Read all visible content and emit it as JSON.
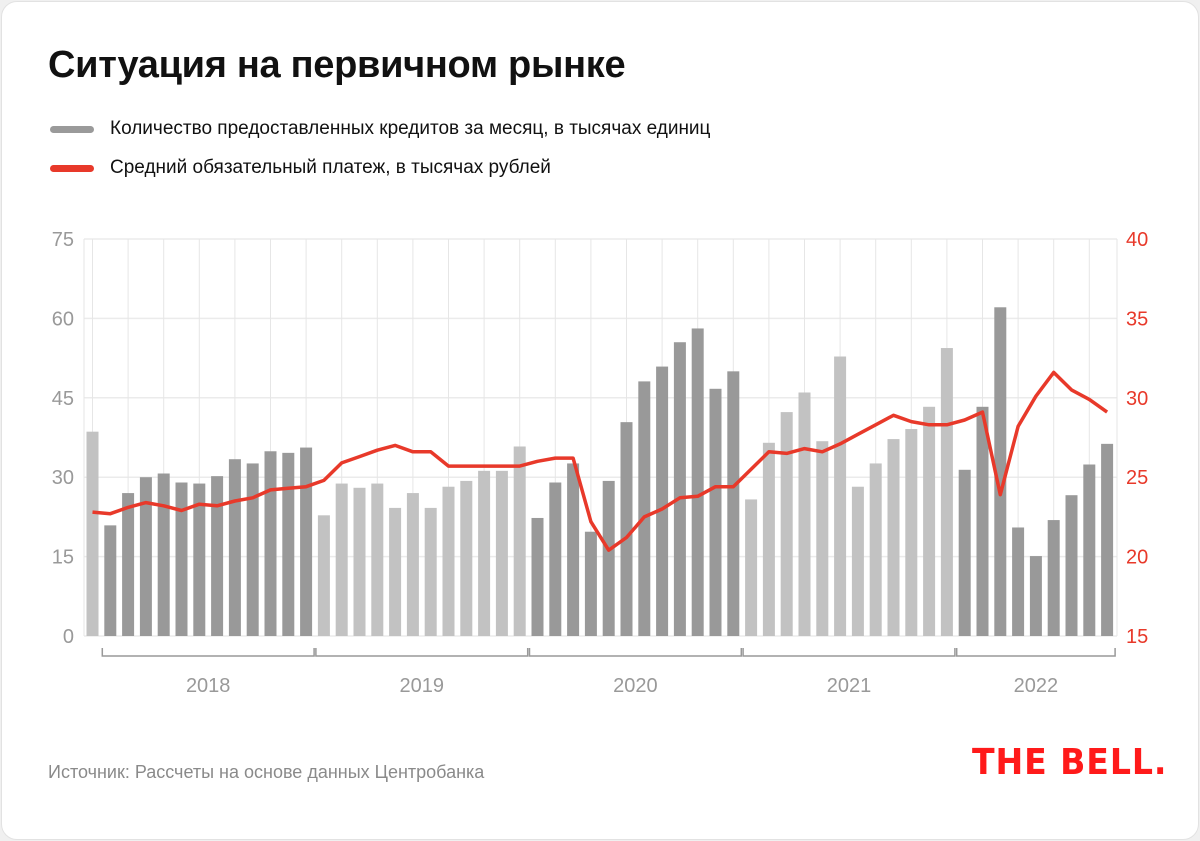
{
  "title": "Ситуация на первичном рынке",
  "legend": [
    {
      "label": "Количество предоставленных кредитов за месяц, в тысячах единиц",
      "color": "#9a9a9a"
    },
    {
      "label": "Средний обязательный платеж, в тысячах рублей",
      "color": "#e8392a"
    }
  ],
  "source": "Источник: Рассчеты на основе данных Центробанка",
  "logo": "THE BELL.",
  "chart_data": {
    "type": "bar+line",
    "title": "Ситуация на первичном рынке",
    "x_period": "2017-12 to 2022-09 monthly",
    "year_labels": [
      {
        "label": "2018",
        "first": 1,
        "last": 12
      },
      {
        "label": "2019",
        "first": 13,
        "last": 24
      },
      {
        "label": "2020",
        "first": 25,
        "last": 36
      },
      {
        "label": "2021",
        "first": 37,
        "last": 48
      },
      {
        "label": "2022",
        "first": 49,
        "last": 57
      }
    ],
    "left_axis": {
      "ylim": [
        0,
        75
      ],
      "ticks": [
        "0",
        "15",
        "30",
        "45",
        "60",
        "75"
      ],
      "color": "#9a9a9a"
    },
    "right_axis": {
      "ylim": [
        15,
        40
      ],
      "ticks": [
        "15",
        "20",
        "25",
        "30",
        "35",
        "40"
      ],
      "color": "#e8392a"
    },
    "grid": true,
    "bar_colors": {
      "dark": "#999999",
      "light": "#c2c2c2"
    },
    "series": [
      {
        "name": "Количество предоставленных кредитов за месяц, в тысячах единиц",
        "type": "bar",
        "axis": "left",
        "values": [
          38.6,
          20.9,
          27.0,
          30.0,
          30.7,
          29.0,
          28.8,
          30.2,
          33.4,
          32.6,
          34.9,
          34.6,
          35.6,
          22.8,
          28.8,
          28.0,
          28.8,
          24.2,
          27.0,
          24.2,
          28.2,
          29.3,
          31.2,
          31.2,
          35.8,
          22.3,
          29.0,
          32.6,
          19.7,
          29.3,
          40.4,
          48.1,
          50.9,
          55.5,
          58.1,
          46.7,
          50.0,
          25.8,
          36.5,
          42.3,
          46.0,
          36.8,
          52.8,
          28.2,
          32.6,
          37.2,
          39.1,
          43.3,
          54.4,
          31.4,
          43.3,
          62.1,
          20.5,
          15.1,
          21.9,
          26.6,
          32.4,
          36.3
        ]
      },
      {
        "name": "Средний обязательный платеж, в тысячах рублей",
        "type": "line",
        "axis": "right",
        "values": [
          22.8,
          22.7,
          23.1,
          23.4,
          23.2,
          22.9,
          23.3,
          23.2,
          23.5,
          23.7,
          24.2,
          24.3,
          24.4,
          24.8,
          25.9,
          26.3,
          26.7,
          27.0,
          26.6,
          26.6,
          25.7,
          25.7,
          25.7,
          25.7,
          25.7,
          26.0,
          26.2,
          26.2,
          22.2,
          20.4,
          21.2,
          22.5,
          23.0,
          23.7,
          23.8,
          24.4,
          24.4,
          25.5,
          26.6,
          26.5,
          26.8,
          26.6,
          27.1,
          27.7,
          28.3,
          28.9,
          28.5,
          28.3,
          28.3,
          28.6,
          29.1,
          23.9,
          28.2,
          30.1,
          31.6,
          30.5,
          29.9,
          29.1
        ]
      }
    ]
  }
}
